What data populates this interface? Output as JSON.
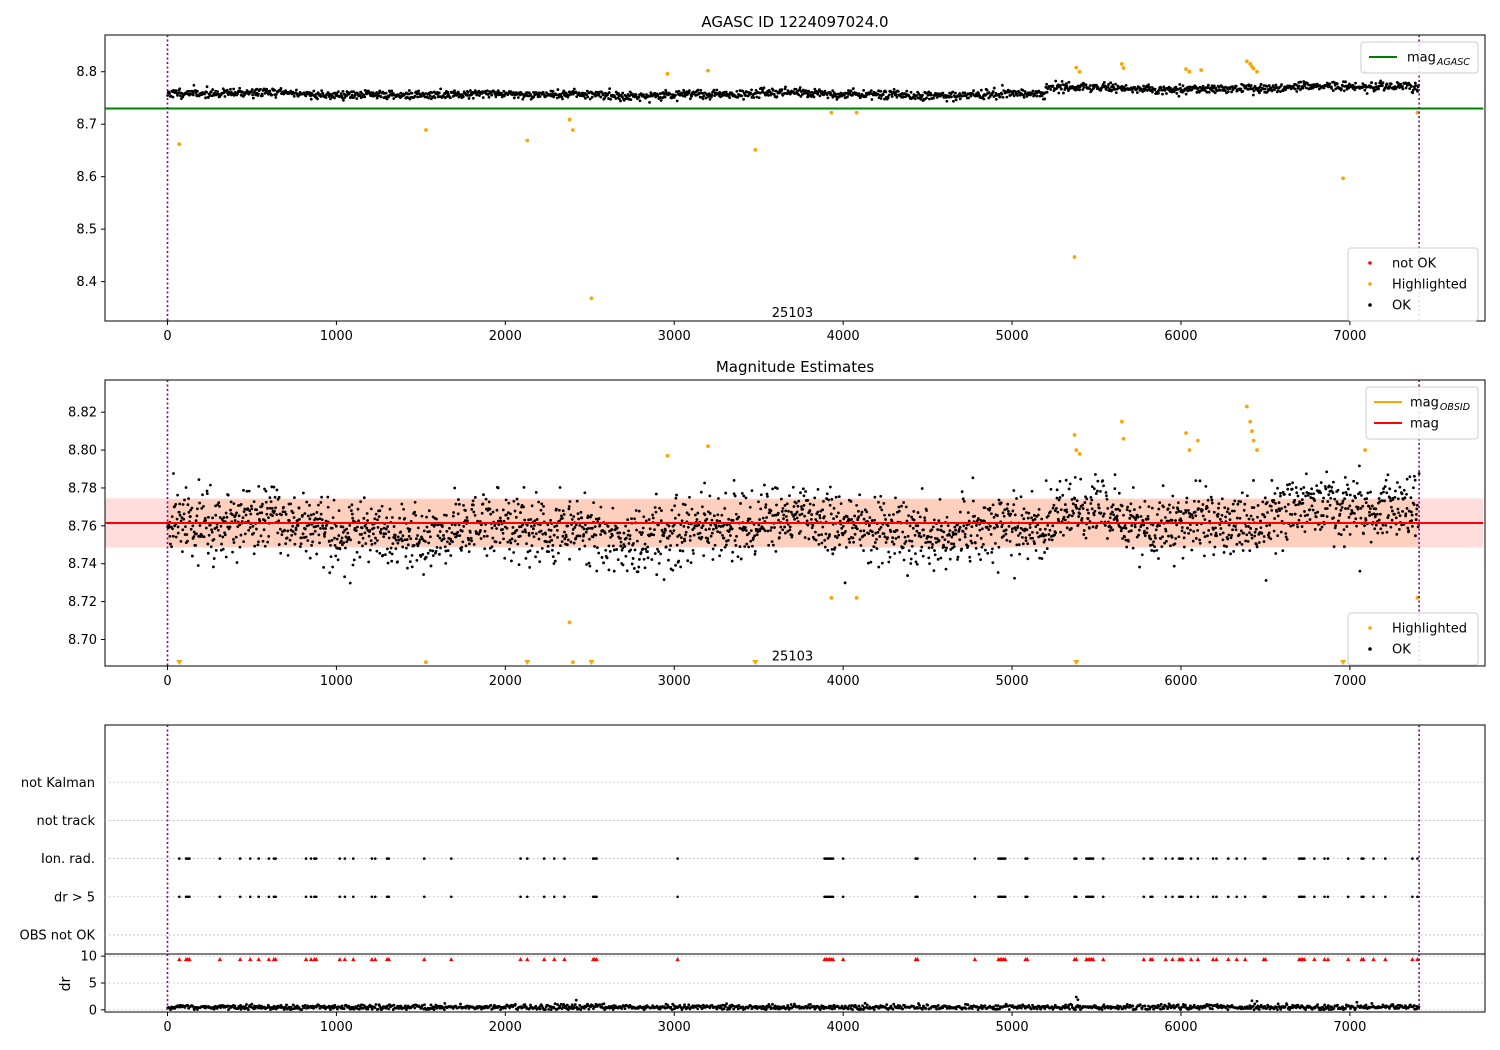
{
  "chart_data": [
    {
      "type": "scatter",
      "title": "AGASC ID 1224097024.0",
      "xlim": [
        -370,
        7800
      ],
      "ylim": [
        8.325,
        8.87
      ],
      "x_ticks": [
        0,
        1000,
        2000,
        3000,
        4000,
        5000,
        6000,
        7000,
        8000
      ],
      "x_tick_labels": [
        "0",
        "1000",
        "2000",
        "3000",
        "4000",
        "5000",
        "6000",
        "7000",
        "8000"
      ],
      "y_ticks": [
        8.4,
        8.5,
        8.6,
        8.7,
        8.8
      ],
      "y_tick_labels": [
        "8.4",
        "8.5",
        "8.6",
        "8.7",
        "8.8"
      ],
      "obsid_boundaries": [
        0,
        7410
      ],
      "obsid_label": {
        "text": "25103",
        "x": 3700,
        "y": 8.34
      },
      "reference_line": {
        "name": "mag_AGASC",
        "y": 8.73,
        "x_range": [
          -370,
          7790
        ],
        "color": "#008000"
      },
      "ok_series": {
        "name": "OK",
        "color": "#000000",
        "x_range": [
          0,
          7410
        ],
        "count": 1900,
        "base": 8.757,
        "spread": 0.012
      },
      "highlighted": {
        "name": "Highlighted",
        "color": "#ffa500",
        "x": [
          70,
          1530,
          2130,
          2380,
          2400,
          2510,
          2960,
          3200,
          3480,
          3930,
          4080,
          5370,
          5380,
          5400,
          5650,
          5660,
          6030,
          6050,
          6120,
          6390,
          6410,
          6420,
          6430,
          6450,
          6960,
          7090,
          7400
        ],
        "y": [
          8.662,
          8.689,
          8.669,
          8.709,
          8.689,
          8.368,
          8.796,
          8.802,
          8.651,
          8.722,
          8.722,
          8.447,
          8.808,
          8.8,
          8.815,
          8.807,
          8.805,
          8.8,
          8.803,
          8.82,
          8.815,
          8.81,
          8.806,
          8.8,
          8.597,
          8.8,
          8.722
        ]
      },
      "legend_upper": [
        {
          "label": "mag",
          "sub": "AGASC",
          "color": "#008000",
          "kind": "line"
        }
      ],
      "legend_lower": [
        {
          "label": "not OK",
          "color": "#ff0000",
          "kind": "dot"
        },
        {
          "label": "Highlighted",
          "color": "#ffa500",
          "kind": "dot"
        },
        {
          "label": "OK",
          "color": "#000000",
          "kind": "dot"
        }
      ],
      "legend_upper_placement": "upper right",
      "legend_lower_placement": "lower right"
    },
    {
      "type": "scatter",
      "title": "Magnitude Estimates",
      "xlim": [
        -370,
        7800
      ],
      "ylim": [
        8.686,
        8.837
      ],
      "x_ticks": [
        0,
        1000,
        2000,
        3000,
        4000,
        5000,
        6000,
        7000,
        8000
      ],
      "x_tick_labels": [
        "0",
        "1000",
        "2000",
        "3000",
        "4000",
        "5000",
        "6000",
        "7000",
        "8000"
      ],
      "y_ticks": [
        8.7,
        8.72,
        8.74,
        8.76,
        8.78,
        8.8,
        8.82
      ],
      "y_tick_labels": [
        "8.70",
        "8.72",
        "8.74",
        "8.76",
        "8.78",
        "8.80",
        "8.82"
      ],
      "obsid_boundaries": [
        0,
        7410
      ],
      "obsid_label": {
        "text": "25103",
        "x": 3700,
        "y": 8.691
      },
      "band": {
        "y_min": 8.7485,
        "y_max": 8.7745,
        "x_range": [
          -370,
          7790
        ],
        "color": "#ffb3b3"
      },
      "band_obsid": {
        "y_min": 8.749,
        "y_max": 8.774,
        "x_range": [
          0,
          7410
        ],
        "color": "#ffbf99"
      },
      "mean_line": {
        "name": "mag",
        "y": 8.7615,
        "x_range": [
          -370,
          7790
        ],
        "color": "#ff0000"
      },
      "obsid_line": {
        "name": "mag_OBSID",
        "y": 8.7615,
        "x_range": [
          0,
          7410
        ],
        "color": "#ffa500"
      },
      "ok_series": {
        "name": "OK",
        "color": "#000000",
        "x_range": [
          0,
          7410
        ],
        "count": 2600,
        "base": 8.758,
        "spread": 0.018
      },
      "highlighted": {
        "name": "Highlighted",
        "color": "#ffa500",
        "x": [
          1530,
          2380,
          2400,
          2960,
          3200,
          3930,
          4080,
          5370,
          5380,
          5400,
          5650,
          5660,
          6030,
          6050,
          6100,
          6390,
          6410,
          6420,
          6430,
          6450,
          7090,
          7400
        ],
        "y": [
          8.688,
          8.709,
          8.688,
          8.797,
          8.802,
          8.722,
          8.722,
          8.808,
          8.8,
          8.798,
          8.815,
          8.806,
          8.809,
          8.8,
          8.805,
          8.823,
          8.815,
          8.81,
          8.805,
          8.8,
          8.8,
          8.722
        ]
      },
      "offscale_markers": {
        "color": "#ffa500",
        "x": [
          70,
          2130,
          2510,
          3480,
          5380,
          6960
        ]
      },
      "legend_upper": [
        {
          "label": "mag",
          "sub": "OBSID",
          "color": "#ffa500",
          "kind": "line"
        },
        {
          "label": "mag",
          "sub": "",
          "color": "#ff0000",
          "kind": "line"
        }
      ],
      "legend_lower": [
        {
          "label": "Highlighted",
          "color": "#ffa500",
          "kind": "dot"
        },
        {
          "label": "OK",
          "color": "#000000",
          "kind": "dot"
        }
      ],
      "legend_upper_placement": "upper right",
      "legend_lower_placement": "lower right"
    },
    {
      "type": "scatter",
      "title": "",
      "xlim": [
        -370,
        7800
      ],
      "ylim": [
        -0.5,
        5.5
      ],
      "categories": [
        "OBS not OK",
        "dr > 5",
        "Ion. rad.",
        "not track",
        "not Kalman"
      ],
      "obsid_boundaries": [
        0,
        7410
      ],
      "flag_x": [
        70,
        110,
        120,
        130,
        310,
        430,
        490,
        540,
        600,
        630,
        640,
        820,
        850,
        870,
        880,
        1020,
        1050,
        1100,
        1210,
        1230,
        1300,
        1310,
        1520,
        1680,
        2090,
        2130,
        2230,
        2290,
        2350,
        2520,
        2530,
        2540,
        3020,
        3890,
        3900,
        3910,
        3920,
        3930,
        3940,
        4000,
        4430,
        4440,
        4780,
        4920,
        4930,
        4940,
        4950,
        4960,
        5080,
        5090,
        5370,
        5380,
        5440,
        5450,
        5460,
        5470,
        5480,
        5540,
        5780,
        5820,
        5830,
        5910,
        5950,
        5990,
        6000,
        6010,
        6060,
        6100,
        6190,
        6210,
        6280,
        6330,
        6380,
        6490,
        6500,
        6700,
        6710,
        6720,
        6730,
        6790,
        6850,
        6870,
        6990,
        7070,
        7080,
        7140,
        7210,
        7370,
        7400
      ],
      "flag_rows": [
        "dr > 5",
        "Ion. rad."
      ]
    },
    {
      "type": "scatter",
      "title": "",
      "ylabel": "dr",
      "xlim": [
        -370,
        7800
      ],
      "ylim": [
        -0.4,
        10.4
      ],
      "x_ticks": [
        0,
        1000,
        2000,
        3000,
        4000,
        5000,
        6000,
        7000,
        8000
      ],
      "x_tick_labels": [
        "0",
        "1000",
        "2000",
        "3000",
        "4000",
        "5000",
        "6000",
        "7000",
        "8000"
      ],
      "y_ticks": [
        0,
        5,
        10
      ],
      "y_tick_labels": [
        "0",
        "5",
        "10"
      ],
      "obsid_boundaries": [
        0,
        7410
      ],
      "dr_series": {
        "color": "#000000",
        "count": 1400,
        "base": 0.5,
        "spread": 0.35
      },
      "dr_spikes": {
        "x": [
          2420,
          5380,
          5390,
          6420,
          6450
        ],
        "y": [
          1.8,
          2.4,
          1.9,
          1.7,
          1.6
        ]
      },
      "capped_marker_value": 10,
      "capped_color": "#ff0000"
    }
  ]
}
